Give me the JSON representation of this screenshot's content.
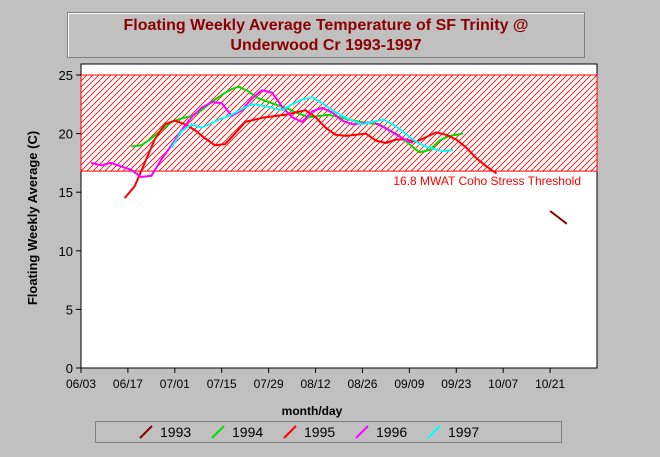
{
  "chart_data": {
    "type": "line",
    "title_line1": "Floating Weekly Average Temperature of SF Trinity @",
    "title_line2": "Underwood Cr 1993-1997",
    "xlabel": "month/day",
    "ylabel": "Floating Weekly Average (C)",
    "x_ticks": [
      "06/03",
      "06/17",
      "07/01",
      "07/15",
      "07/29",
      "08/12",
      "08/26",
      "09/09",
      "09/23",
      "10/07",
      "10/21"
    ],
    "x_range_days": [
      0,
      154
    ],
    "ylim": [
      0,
      25
    ],
    "y_ticks": [
      0,
      5,
      10,
      15,
      20,
      25
    ],
    "threshold": {
      "value": 16.8,
      "label": "16.8 MWAT Coho Stress Threshold",
      "color": "#ff0000"
    },
    "series": [
      {
        "name": "1993",
        "color": "#8b0000",
        "points": [
          [
            140,
            13.4
          ],
          [
            145,
            12.3
          ]
        ]
      },
      {
        "name": "1994",
        "color": "#00dd00",
        "points": [
          [
            15,
            18.9
          ],
          [
            18,
            19.0
          ],
          [
            21,
            19.6
          ],
          [
            24,
            20.3
          ],
          [
            27,
            21.0
          ],
          [
            30,
            21.3
          ],
          [
            33,
            21.5
          ],
          [
            36,
            22.0
          ],
          [
            39,
            22.7
          ],
          [
            42,
            23.3
          ],
          [
            45,
            23.8
          ],
          [
            47,
            24.0
          ],
          [
            50,
            23.6
          ],
          [
            53,
            23.0
          ],
          [
            56,
            22.7
          ],
          [
            59,
            22.4
          ],
          [
            62,
            22.1
          ],
          [
            65,
            21.7
          ],
          [
            68,
            21.4
          ],
          [
            71,
            21.5
          ],
          [
            74,
            21.6
          ],
          [
            77,
            21.4
          ],
          [
            80,
            21.2
          ],
          [
            83,
            21.0
          ],
          [
            86,
            20.9
          ],
          [
            89,
            20.8
          ],
          [
            92,
            20.3
          ],
          [
            95,
            19.8
          ],
          [
            98,
            19.1
          ],
          [
            101,
            18.4
          ],
          [
            104,
            18.6
          ],
          [
            107,
            19.4
          ],
          [
            110,
            19.8
          ],
          [
            114,
            20.0
          ]
        ]
      },
      {
        "name": "1995",
        "color": "#ff0000",
        "points": [
          [
            13,
            14.5
          ],
          [
            16,
            15.5
          ],
          [
            19,
            17.5
          ],
          [
            22,
            19.5
          ],
          [
            25,
            20.8
          ],
          [
            28,
            21.1
          ],
          [
            31,
            20.8
          ],
          [
            34,
            20.3
          ],
          [
            37,
            19.6
          ],
          [
            40,
            19.0
          ],
          [
            43,
            19.1
          ],
          [
            46,
            20.0
          ],
          [
            49,
            21.0
          ],
          [
            52,
            21.2
          ],
          [
            55,
            21.4
          ],
          [
            58,
            21.5
          ],
          [
            61,
            21.6
          ],
          [
            64,
            21.8
          ],
          [
            67,
            22.0
          ],
          [
            70,
            21.4
          ],
          [
            73,
            20.5
          ],
          [
            76,
            19.9
          ],
          [
            79,
            19.8
          ],
          [
            82,
            19.9
          ],
          [
            85,
            20.0
          ],
          [
            88,
            19.4
          ],
          [
            91,
            19.2
          ],
          [
            94,
            19.5
          ],
          [
            97,
            19.5
          ],
          [
            100,
            19.3
          ],
          [
            103,
            19.7
          ],
          [
            106,
            20.1
          ],
          [
            109,
            19.9
          ],
          [
            112,
            19.5
          ],
          [
            115,
            18.8
          ],
          [
            118,
            17.9
          ],
          [
            121,
            17.2
          ],
          [
            124,
            16.6
          ]
        ]
      },
      {
        "name": "1996",
        "color": "#ff00ff",
        "points": [
          [
            3,
            17.5
          ],
          [
            6,
            17.3
          ],
          [
            9,
            17.5
          ],
          [
            12,
            17.2
          ],
          [
            15,
            16.9
          ],
          [
            18,
            16.3
          ],
          [
            21,
            16.4
          ],
          [
            24,
            17.8
          ],
          [
            27,
            19.0
          ],
          [
            30,
            20.3
          ],
          [
            33,
            21.4
          ],
          [
            36,
            22.2
          ],
          [
            39,
            22.7
          ],
          [
            42,
            22.6
          ],
          [
            45,
            21.5
          ],
          [
            48,
            22.0
          ],
          [
            51,
            23.0
          ],
          [
            54,
            23.7
          ],
          [
            57,
            23.5
          ],
          [
            60,
            22.3
          ],
          [
            63,
            21.4
          ],
          [
            66,
            21.0
          ],
          [
            69,
            21.9
          ],
          [
            72,
            22.2
          ],
          [
            75,
            21.8
          ],
          [
            78,
            21.1
          ],
          [
            81,
            20.8
          ],
          [
            84,
            20.9
          ],
          [
            87,
            21.0
          ],
          [
            90,
            20.6
          ],
          [
            93,
            20.1
          ],
          [
            96,
            19.6
          ],
          [
            99,
            19.2
          ]
        ]
      },
      {
        "name": "1997",
        "color": "#00ffff",
        "points": [
          [
            27,
            18.8
          ],
          [
            30,
            20.2
          ],
          [
            33,
            20.8
          ],
          [
            36,
            20.5
          ],
          [
            39,
            20.9
          ],
          [
            42,
            21.3
          ],
          [
            45,
            21.6
          ],
          [
            48,
            22.1
          ],
          [
            51,
            22.5
          ],
          [
            54,
            22.4
          ],
          [
            57,
            22.2
          ],
          [
            60,
            22.0
          ],
          [
            63,
            22.5
          ],
          [
            66,
            22.9
          ],
          [
            69,
            23.1
          ],
          [
            72,
            22.6
          ],
          [
            75,
            22.0
          ],
          [
            78,
            21.5
          ],
          [
            81,
            21.1
          ],
          [
            84,
            20.8
          ],
          [
            87,
            21.0
          ],
          [
            90,
            21.2
          ],
          [
            93,
            20.8
          ],
          [
            96,
            20.2
          ],
          [
            99,
            19.5
          ],
          [
            102,
            19.0
          ],
          [
            105,
            18.7
          ],
          [
            108,
            18.5
          ],
          [
            111,
            18.6
          ]
        ]
      }
    ]
  }
}
